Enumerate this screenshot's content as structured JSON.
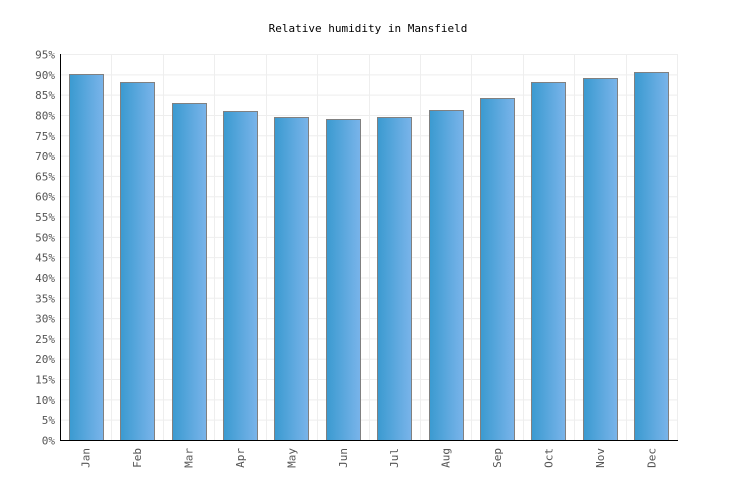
{
  "chart_data": {
    "type": "bar",
    "title": "Relative humidity in Mansfield",
    "xlabel": "",
    "ylabel": "",
    "categories": [
      "Jan",
      "Feb",
      "Mar",
      "Apr",
      "May",
      "Jun",
      "Jul",
      "Aug",
      "Sep",
      "Oct",
      "Nov",
      "Dec"
    ],
    "values": [
      90,
      88,
      83,
      81,
      79.4,
      79.1,
      79.6,
      81.3,
      84.2,
      88.2,
      89.2,
      90.5
    ],
    "ylim": [
      0,
      95
    ],
    "ytick_step": 5,
    "ytick_suffix": "%",
    "grid": true,
    "legend": "none",
    "colors": {
      "bar_left": "#3a9ad0",
      "bar_right": "#7ab4ea",
      "bar_stroke": "#808080",
      "grid": "#eeeeee",
      "axis": "#000000",
      "tick_text": "#555555"
    }
  }
}
